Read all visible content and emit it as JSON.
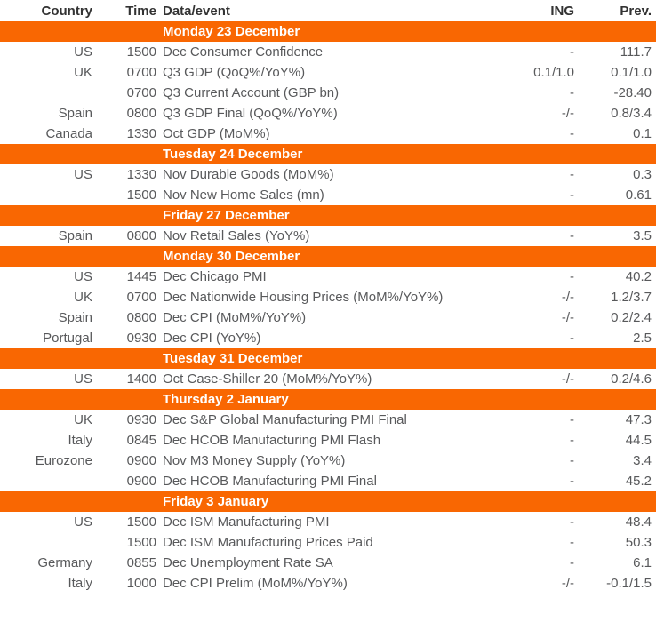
{
  "colors": {
    "accent_orange": "#f96702",
    "header_text": "#333333",
    "body_text": "#58595b",
    "section_text": "#ffffff",
    "background": "#ffffff"
  },
  "header": {
    "country": "Country",
    "time": "Time",
    "event": "Data/event",
    "ing": "ING",
    "prev": "Prev."
  },
  "sections": [
    {
      "title": "Monday 23 December",
      "rows": [
        {
          "country": "US",
          "time": "1500",
          "event": "Dec Consumer Confidence",
          "ing": "-",
          "prev": "111.7"
        },
        {
          "country": "UK",
          "time": "0700",
          "event": "Q3 GDP (QoQ%/YoY%)",
          "ing": "0.1/1.0",
          "prev": "0.1/1.0"
        },
        {
          "country": "",
          "time": "0700",
          "event": "Q3 Current Account (GBP bn)",
          "ing": "-",
          "prev": "-28.40"
        },
        {
          "country": "Spain",
          "time": "0800",
          "event": "Q3 GDP Final (QoQ%/YoY%)",
          "ing": "-/-",
          "prev": "0.8/3.4"
        },
        {
          "country": "Canada",
          "time": "1330",
          "event": "Oct GDP (MoM%)",
          "ing": "-",
          "prev": "0.1"
        }
      ]
    },
    {
      "title": "Tuesday 24 December",
      "rows": [
        {
          "country": "US",
          "time": "1330",
          "event": "Nov Durable Goods (MoM%)",
          "ing": "-",
          "prev": "0.3"
        },
        {
          "country": "",
          "time": "1500",
          "event": "Nov New Home Sales (mn)",
          "ing": "-",
          "prev": "0.61"
        }
      ]
    },
    {
      "title": "Friday 27 December",
      "rows": [
        {
          "country": "Spain",
          "time": "0800",
          "event": "Nov Retail Sales (YoY%)",
          "ing": "-",
          "prev": "3.5"
        }
      ]
    },
    {
      "title": "Monday 30 December",
      "rows": [
        {
          "country": "US",
          "time": "1445",
          "event": "Dec Chicago PMI",
          "ing": "-",
          "prev": "40.2"
        },
        {
          "country": "UK",
          "time": "0700",
          "event": "Dec Nationwide Housing Prices (MoM%/YoY%)",
          "ing": "-/-",
          "prev": "1.2/3.7"
        },
        {
          "country": "Spain",
          "time": "0800",
          "event": "Dec CPI (MoM%/YoY%)",
          "ing": "-/-",
          "prev": "0.2/2.4"
        },
        {
          "country": "Portugal",
          "time": "0930",
          "event": "Dec CPI (YoY%)",
          "ing": "-",
          "prev": "2.5"
        }
      ]
    },
    {
      "title": "Tuesday 31 December",
      "rows": [
        {
          "country": "US",
          "time": "1400",
          "event": "Oct Case-Shiller 20 (MoM%/YoY%)",
          "ing": "-/-",
          "prev": "0.2/4.6"
        }
      ]
    },
    {
      "title": "Thursday 2 January",
      "rows": [
        {
          "country": "UK",
          "time": "0930",
          "event": "Dec S&P Global Manufacturing PMI Final",
          "ing": "-",
          "prev": "47.3"
        },
        {
          "country": "Italy",
          "time": "0845",
          "event": "Dec HCOB Manufacturing PMI Flash",
          "ing": "-",
          "prev": "44.5"
        },
        {
          "country": "Eurozone",
          "time": "0900",
          "event": "Nov M3 Money Supply (YoY%)",
          "ing": "-",
          "prev": "3.4"
        },
        {
          "country": "",
          "time": "0900",
          "event": "Dec HCOB Manufacturing PMI Final",
          "ing": "-",
          "prev": "45.2"
        }
      ]
    },
    {
      "title": "Friday 3 January",
      "rows": [
        {
          "country": "US",
          "time": "1500",
          "event": "Dec ISM Manufacturing PMI",
          "ing": "-",
          "prev": "48.4"
        },
        {
          "country": "",
          "time": "1500",
          "event": "Dec ISM Manufacturing Prices Paid",
          "ing": "-",
          "prev": "50.3"
        },
        {
          "country": "Germany",
          "time": "0855",
          "event": "Dec Unemployment Rate SA",
          "ing": "-",
          "prev": "6.1"
        },
        {
          "country": "Italy",
          "time": "1000",
          "event": "Dec CPI Prelim (MoM%/YoY%)",
          "ing": "-/-",
          "prev": "-0.1/1.5"
        }
      ]
    }
  ]
}
